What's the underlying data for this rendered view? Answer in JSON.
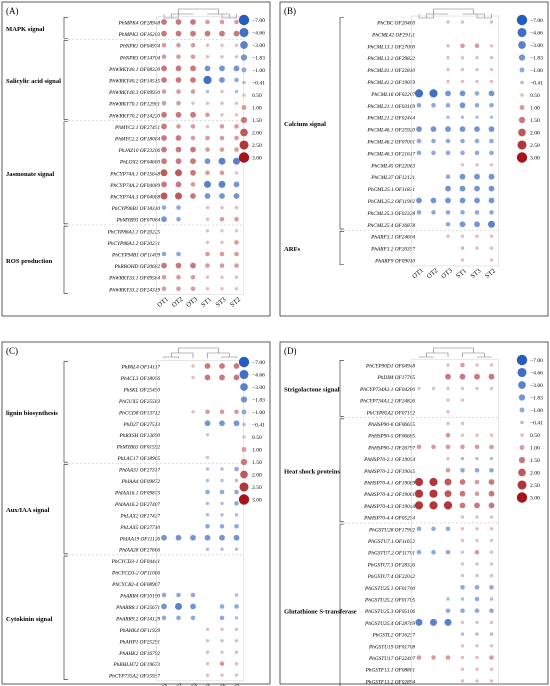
{
  "chart_data": [
    {
      "type": "bubble-heatmap",
      "panel": "(A)",
      "samples": [
        "OT1",
        "OT2",
        "OT3",
        "ST1",
        "ST3",
        "ST2"
      ],
      "legend": [
        "−7.00",
        "−4.66",
        "−3.00",
        "−1.83",
        "−1.00",
        "−0.41",
        "0.50",
        "1.00",
        "1.50",
        "2.00",
        "2.50",
        "3.00"
      ],
      "groups": [
        {
          "label": "MAPK signal",
          "genes": [
            "PhMPK4 OF28948",
            "PhMPK3 OF16203"
          ]
        },
        {
          "label": "Salicylic acid signal",
          "genes": [
            "PhNPR1 OF04974",
            "PhNPR3 OF14704",
            "PhWRKY40.1 OF08320",
            "PhWRKY40.2 OF14515",
            "PhWRKY40.3 OF09930",
            "PhWRKY70.1 OF12901",
            "PhWRKY70.2 OF24220"
          ]
        },
        {
          "label": "Jasmonate signal",
          "genes": [
            "PhMYC2.1 OF27451",
            "PhMYC2.2 OF18084",
            "PhJAZ10 OF23206",
            "PhLOX2 OF04680",
            "PhCYP74A.1 OF15648",
            "PhCYP74A.2 OF04089",
            "PhCYP74A.3 OF04088",
            "PhCYP96B1 OF18310",
            "PhMYB93 OF07084"
          ]
        },
        {
          "label": "ROS production",
          "genes": [
            "PhCYP86A1.1 OF20225",
            "PhCYP86A1.2 OF20231",
            "PhCYP94B1 OF11409",
            "PhRBOHD OF20682",
            "PhWRKY33.1 OF09564",
            "PhWRKY33.2 OF24319"
          ]
        }
      ],
      "values": [
        [
          1.5,
          1.5,
          1.5,
          1,
          1,
          1
        ],
        [
          1.5,
          1.5,
          1.5,
          1.5,
          1.5,
          1.5
        ],
        [
          1,
          1,
          1,
          0.5,
          0.5,
          0.5
        ],
        [
          1,
          1,
          1,
          0.5,
          0.5,
          0.5
        ],
        [
          1.5,
          1.5,
          1.5,
          -1.83,
          -1.83,
          -1.83
        ],
        [
          1.5,
          1.5,
          1.5,
          -4.66,
          -1.83,
          -1
        ],
        [
          1,
          1,
          1,
          -0.41,
          0.5,
          -0.41
        ],
        [
          1,
          1,
          0.5,
          0.5,
          0.5,
          0.5
        ],
        [
          1.5,
          1.5,
          1.5,
          1,
          0.5,
          0.5
        ],
        [
          1.5,
          1,
          1,
          0.5,
          1,
          1
        ],
        [
          1.5,
          1.5,
          1,
          1,
          1,
          1
        ],
        [
          1.5,
          1.5,
          1.5,
          1,
          1,
          1
        ],
        [
          1.5,
          1.5,
          1.5,
          -1.83,
          -3,
          -3
        ],
        [
          2,
          2,
          1.5,
          1,
          1,
          0.5
        ],
        [
          1.5,
          1.5,
          1,
          -3,
          -3,
          -1.83
        ],
        [
          2,
          2,
          1.5,
          -1.83,
          -1.83,
          -1.83
        ],
        [
          -1,
          -1,
          null,
          0.5,
          0.5,
          0.5
        ],
        [
          -1.83,
          -1,
          null,
          0.5,
          1,
          1
        ],
        [
          null,
          null,
          null,
          0.5,
          0.5,
          0.5
        ],
        [
          null,
          null,
          null,
          0.5,
          0.5,
          1
        ],
        [
          -1,
          -1,
          null,
          1,
          1,
          1
        ],
        [
          1.5,
          1.5,
          1.5,
          1,
          1,
          1
        ],
        [
          1,
          1,
          1,
          0.5,
          0.5,
          0.5
        ],
        [
          1,
          1,
          1,
          0.5,
          0.5,
          0.5
        ]
      ]
    },
    {
      "type": "bubble-heatmap",
      "panel": "(B)",
      "samples": [
        "OT1",
        "OT2",
        "OT3",
        "ST1",
        "ST3",
        "ST2"
      ],
      "legend": [
        "−7.00",
        "−4.66",
        "−3.00",
        "−1.83",
        "−1.00",
        "−0.41",
        "0.50",
        "1.00",
        "1.50",
        "2.00",
        "2.50",
        "3.00"
      ],
      "groups": [
        {
          "label": "Calcium signal",
          "genes": [
            "PhCBC OF20480",
            "PhCML42 OF29111",
            "PhCML13.1 OF27000",
            "PhCML13.2 OF29822",
            "PhCML41.1 OF22810",
            "PhCML41.2 OF19059",
            "PhCML16 OF02207",
            "PhCML21.1 OF03169",
            "PhCML21.2 OF02444",
            "PhCML46.1 OF25920",
            "PhCML46.2 OF07001",
            "PhCML46.3 OF21617",
            "PhCML45 OF22063",
            "PhCML37 OF12121",
            "PhCML25.1 OF11831",
            "PhCML25.2 OF11902",
            "PhCML25.3 OF02328",
            "PhCML25.4 OF16878"
          ]
        },
        {
          "label": "ARFs",
          "genes": [
            "PhARF3.1 OF24604",
            "PhARF3.2 OF20357",
            "PhARF9 OF09010"
          ]
        }
      ],
      "values": [
        [
          null,
          null,
          0.5,
          0.5,
          null,
          0.5
        ],
        [
          null,
          null,
          null,
          null,
          null,
          null
        ],
        [
          null,
          null,
          0.5,
          1,
          1,
          0.5
        ],
        [
          null,
          null,
          0.5,
          0.5,
          0.5,
          0.5
        ],
        [
          null,
          null,
          0.5,
          0.5,
          0.5,
          0.5
        ],
        [
          null,
          null,
          0.5,
          0.5,
          0.5,
          0.5
        ],
        [
          -4.66,
          -4.66,
          -1.83,
          -1.83,
          -1,
          -1.83
        ],
        [
          -1,
          -1,
          -1,
          -1.83,
          -1,
          -1
        ],
        [
          null,
          null,
          -0.41,
          -0.41,
          -0.41,
          -0.41
        ],
        [
          -1.83,
          -1.83,
          -1.83,
          -1.83,
          -1.83,
          -1.83
        ],
        [
          -1,
          -1,
          -1,
          -1,
          -1,
          -1
        ],
        [
          -1,
          -1,
          -1,
          -1,
          -1,
          -1
        ],
        [
          null,
          null,
          null,
          0.5,
          0.5,
          0.5
        ],
        [
          null,
          null,
          -1,
          -1.83,
          -1.83,
          -1.83
        ],
        [
          null,
          null,
          -1.83,
          -1.83,
          -1.83,
          -1.83
        ],
        [
          -1.83,
          -1.83,
          -1.83,
          -1.83,
          -1.83,
          -1.83
        ],
        [
          -1,
          -1,
          -1,
          -1,
          -1,
          -1
        ],
        [
          null,
          null,
          -1,
          -1.83,
          -1.83,
          -3
        ],
        [
          null,
          null,
          0.5,
          0.5,
          0.5,
          0.5
        ],
        [
          null,
          null,
          null,
          -0.41,
          0.5,
          0.5
        ],
        [
          null,
          null,
          null,
          0.5,
          null,
          0.5
        ]
      ]
    },
    {
      "type": "bubble-heatmap",
      "panel": "(C)",
      "samples": [
        "OT1",
        "OT2",
        "OT3",
        "ST1",
        "ST3",
        "ST2"
      ],
      "legend": [
        "−7.00",
        "−4.66",
        "−3.00",
        "−1.83",
        "−1.00",
        "−0.41",
        "0.50",
        "1.00",
        "1.50",
        "2.00",
        "2.50",
        "3.00"
      ],
      "groups": [
        {
          "label": "lignin biosynthesis",
          "genes": [
            "PhPAL4 OF14117",
            "Ph4CL3 OF18056",
            "PhSKL OF25450",
            "PhGUX5 OF25583",
            "PhCCD8 OF13712",
            "PhD27 OF27513",
            "PhRXSH OF13690",
            "PhMYB63 OF01592",
            "PhLAC17 OF18965"
          ]
        },
        {
          "label": "Aux/IAA signal",
          "genes": [
            "PhIAA31 OF27317",
            "PhIAA4 OF09872",
            "PhIAA16.1 OF09873",
            "PhIAA16.2 OF27487",
            "PhLAX2 OF17427",
            "PhLAX5 OF27710",
            "PhIAA19 OF11126",
            "PhIAA28 OF27666"
          ]
        },
        {
          "label": "Cytokinin signal",
          "genes": [
            "PhCYCD3-1 OF04441",
            "PhCYCD3-2 OF11066",
            "PhCYCB2-4 OF08967",
            "PhARR4 OF10190",
            "PhARR8.1 OF25671",
            "PhARR9.2 OF14129",
            "PhAHK4 OF11929",
            "PhAHP1 OF25291",
            "PhAHK2 OF16792",
            "PhBHLH72 OF19673",
            "PhCYP735A2 OF15937"
          ]
        }
      ],
      "values": [
        [
          null,
          null,
          0.5,
          1.5,
          1.5,
          1.5
        ],
        [
          null,
          null,
          0.5,
          1.5,
          1.5,
          1.5
        ],
        [
          null,
          null,
          null,
          null,
          null,
          null
        ],
        [
          null,
          null,
          null,
          null,
          null,
          null
        ],
        [
          null,
          null,
          0.5,
          1,
          1,
          1
        ],
        [
          null,
          null,
          null,
          -1.83,
          -1.83,
          -1.83
        ],
        [
          null,
          null,
          null,
          0.5,
          null,
          null
        ],
        [
          null,
          null,
          null,
          null,
          null,
          null
        ],
        [
          null,
          null,
          null,
          0.5,
          null,
          null
        ],
        [
          null,
          null,
          null,
          -0.41,
          -0.41,
          -1
        ],
        [
          null,
          null,
          null,
          -0.41,
          -0.41,
          -0.41
        ],
        [
          null,
          null,
          null,
          -1,
          -1,
          -1
        ],
        [
          null,
          null,
          null,
          -0.41,
          -0.41,
          -1
        ],
        [
          null,
          null,
          null,
          -0.41,
          -0.41,
          -0.41
        ],
        [
          null,
          null,
          null,
          -1,
          -1,
          -1
        ],
        [
          -1.83,
          -1.83,
          -1.83,
          -1.83,
          -1.83,
          -1.83
        ],
        [
          null,
          null,
          null,
          -0.41,
          -0.41,
          -0.41
        ],
        [
          null,
          null,
          null,
          null,
          null,
          null
        ],
        [
          null,
          null,
          null,
          null,
          null,
          null
        ],
        [
          null,
          null,
          null,
          null,
          null,
          null
        ],
        [
          -1,
          -1,
          -1,
          null,
          null,
          -0.41
        ],
        [
          -1.83,
          -3,
          -1.83,
          null,
          -1,
          -1
        ],
        [
          -1,
          -1,
          -1,
          null,
          -1,
          -0.41
        ],
        [
          null,
          null,
          null,
          0.5,
          0.5,
          0.5
        ],
        [
          null,
          null,
          null,
          0.5,
          0.5,
          0.5
        ],
        [
          null,
          null,
          null,
          0.5,
          0.5,
          0.5
        ],
        [
          null,
          null,
          null,
          0.5,
          1,
          0.5
        ],
        [
          null,
          null,
          null,
          0.5,
          0.5,
          0.5
        ]
      ]
    },
    {
      "type": "bubble-heatmap",
      "panel": "(D)",
      "samples": [
        "OT1",
        "OT2",
        "OT3",
        "ST1",
        "ST3",
        "ST2"
      ],
      "legend": [
        "−7.00",
        "−4.66",
        "−3.00",
        "−1.83",
        "−1.00",
        "−0.41",
        "0.50",
        "1.00",
        "1.50",
        "2.00",
        "2.50",
        "3.00"
      ],
      "groups": [
        {
          "label": "Strigolactone signal",
          "genes": [
            "PhCYP90D1 OF04948",
            "PhDIM OF17765",
            "PhCYP734A1.1 OF04280",
            "PhCYP734A1.2 OF24826",
            "PhCYP85A2 OF07152"
          ]
        },
        {
          "label": "Heat shock proteins",
          "genes": [
            "PhHSP90-6 OF06655",
            "PhHSP90-5 OF06685",
            "PhHSP90-1 OF26797",
            "PhHSP70-2.1 OF19054",
            "PhHSP70-2.2 OF19045",
            "PhHSP70-4.1 OF19069",
            "PhHSP70-4.2 OF19061",
            "PhHSP70-4.3 OF19044",
            "PhHSP70-4.4 OF05254"
          ]
        },
        {
          "label": "Glutathione S-transferase",
          "genes": [
            "PhGSTU28 OF17902",
            "PhGSTU7.1 OF11652",
            "PhGSTU7.2 OF11701",
            "PhGSTU7.3 OF28326",
            "PhGSTU7.4 OF22042",
            "PhGSTU25.1 OF01700",
            "PhGSTU25.2 OF01705",
            "PhGSTU25.3 OF05106",
            "PhGSTU25.4 OF28769",
            "PhGSTL2 OF16237",
            "PhGSTU19 OF01708",
            "PhGSTU17 OF22407",
            "PhGSTF13.1 OF08881",
            "PhGSTF13.2 OF02894",
            "PhGSTF13.3 OF02895"
          ]
        }
      ],
      "values": [
        [
          null,
          null,
          0.5,
          1,
          0.5,
          0.5
        ],
        [
          null,
          null,
          1.5,
          1.5,
          1.5,
          1.5
        ],
        [
          0.5,
          0.5,
          0.5,
          0.5,
          0.5,
          0.5
        ],
        [
          null,
          null,
          0.5,
          0.5,
          null,
          null
        ],
        [
          null,
          null,
          0.5,
          null,
          null,
          null
        ],
        [
          null,
          null,
          0.5,
          0.5,
          null,
          null
        ],
        [
          null,
          null,
          1,
          0.5,
          0.5,
          0.5
        ],
        [
          1,
          1,
          1,
          1,
          1,
          1
        ],
        [
          null,
          null,
          0.5,
          -0.41,
          -0.41,
          -0.41
        ],
        [
          null,
          null,
          1,
          -1,
          -1,
          -1
        ],
        [
          2.5,
          2.5,
          2,
          1.5,
          1,
          1.5
        ],
        [
          2.5,
          2.5,
          2,
          1.5,
          1,
          1.5
        ],
        [
          2.5,
          2.5,
          2.5,
          1.5,
          1.5,
          1.5
        ],
        [
          null,
          null,
          null,
          0.5,
          0.5,
          0.5
        ],
        [
          -1,
          -1,
          -1,
          0.5,
          0.5,
          0.5
        ],
        [
          null,
          null,
          null,
          0.5,
          0.5,
          0.5
        ],
        [
          -1,
          -1,
          -1,
          0.5,
          1,
          0.5
        ],
        [
          null,
          null,
          null,
          0.5,
          0.5,
          0.5
        ],
        [
          null,
          null,
          null,
          0.5,
          0.5,
          0.5
        ],
        [
          null,
          null,
          null,
          -1,
          -1,
          -1
        ],
        [
          null,
          null,
          -0.41,
          -0.41,
          -1,
          -0.41
        ],
        [
          null,
          null,
          -1,
          -1,
          -1,
          -1
        ],
        [
          -3,
          -3,
          -3,
          0.5,
          0.5,
          0.5
        ],
        [
          null,
          null,
          null,
          -0.41,
          -0.41,
          -0.41
        ],
        [
          null,
          null,
          null,
          0.5,
          0.5,
          0.5
        ],
        [
          1,
          1,
          1,
          0.5,
          0.5,
          1
        ],
        [
          null,
          null,
          null,
          0.5,
          0.5,
          0.5
        ],
        [
          null,
          null,
          null,
          0.5,
          0.5,
          0.5
        ],
        [
          null,
          null,
          null,
          0.5,
          0.5,
          0.5
        ]
      ]
    }
  ]
}
